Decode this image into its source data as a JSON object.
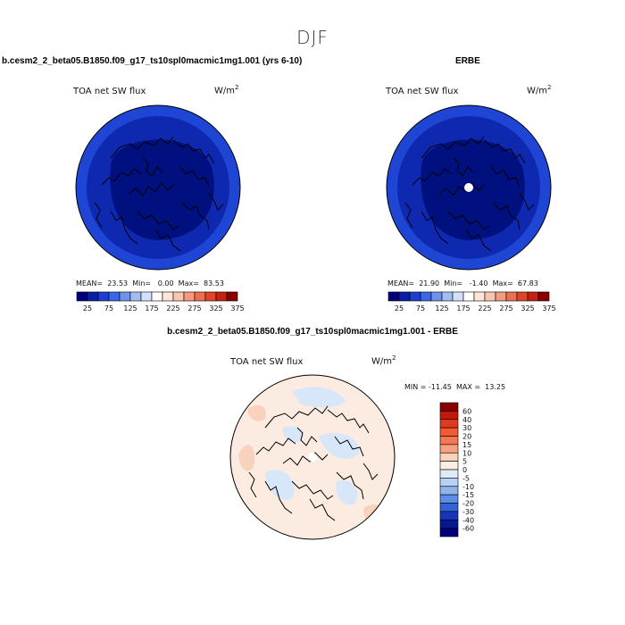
{
  "figure": {
    "season": "DJF"
  },
  "chart_data": [
    {
      "type": "heatmap",
      "title": "b.cesm2_2_beta05.B1850.f09_g17_ts10spl0macmic1mg1.001 (yrs 6-10)",
      "subtitle": "TOA net SW flux",
      "units": "W/m",
      "units_exp": "2",
      "stats": {
        "mean_label": "MEAN=",
        "mean": "23.53",
        "min_label": "Min=",
        "min": "0.00",
        "max_label": "Max=",
        "max": "83.53"
      },
      "colorbar": {
        "orientation": "horizontal",
        "tick_labels": [
          "25",
          "75",
          "125",
          "175",
          "225",
          "275",
          "325",
          "375"
        ],
        "colors": [
          "#00007f",
          "#0a1fa8",
          "#1d3ed0",
          "#3a66e8",
          "#6d93ee",
          "#a3bdf4",
          "#d3e2fa",
          "#ffffff",
          "#fde6d8",
          "#f8c5ae",
          "#f39b7c",
          "#ec6f4f",
          "#e0452b",
          "#c42211",
          "#8a0000"
        ]
      },
      "projection": "north polar stereographic",
      "field_colors": {
        "outer": "#1e45d3",
        "middle": "#0e28b0",
        "inner": "#00117f"
      }
    },
    {
      "type": "heatmap",
      "title": "ERBE",
      "subtitle": "TOA net SW flux",
      "units": "W/m",
      "units_exp": "2",
      "stats": {
        "mean_label": "MEAN=",
        "mean": "21.90",
        "min_label": "Min=",
        "min": "-1.40",
        "max_label": "Max=",
        "max": "67.83"
      },
      "colorbar": {
        "orientation": "horizontal",
        "tick_labels": [
          "25",
          "75",
          "125",
          "175",
          "225",
          "275",
          "325",
          "375"
        ],
        "colors": [
          "#00007f",
          "#0a1fa8",
          "#1d3ed0",
          "#3a66e8",
          "#6d93ee",
          "#a3bdf4",
          "#d3e2fa",
          "#ffffff",
          "#fde6d8",
          "#f8c5ae",
          "#f39b7c",
          "#ec6f4f",
          "#e0452b",
          "#c42211",
          "#8a0000"
        ]
      },
      "projection": "north polar stereographic",
      "missing_pole": true,
      "field_colors": {
        "outer": "#1e45d3",
        "middle": "#0e28b0",
        "inner": "#00117f"
      }
    },
    {
      "type": "heatmap",
      "title": "b.cesm2_2_beta05.B1850.f09_g17_ts10spl0macmic1mg1.001 - ERBE",
      "subtitle": "TOA net SW flux",
      "units": "W/m",
      "units_exp": "2",
      "stats": {
        "min_label": "MIN =",
        "min": "-11.45",
        "max_label": "MAX =",
        "max": "13.25"
      },
      "colorbar": {
        "orientation": "vertical",
        "tick_labels": [
          "60",
          "40",
          "30",
          "20",
          "15",
          "10",
          "5",
          "0",
          "-5",
          "-10",
          "-15",
          "-20",
          "-30",
          "-40",
          "-60"
        ],
        "colors": [
          "#8a0000",
          "#c0180a",
          "#e03a1e",
          "#f15a32",
          "#f4774f",
          "#f7a07f",
          "#fad2bc",
          "#fdeee2",
          "#dfeaf9",
          "#b9d1f3",
          "#8fb2ec",
          "#5e8ee4",
          "#3461da",
          "#1735b8",
          "#041896",
          "#00007f"
        ]
      },
      "projection": "north polar stereographic",
      "missing_pole": true,
      "field_colors": {
        "base": "#fcebe0",
        "positive": "#f9d2be",
        "negative": "#d7e6f8"
      }
    }
  ]
}
